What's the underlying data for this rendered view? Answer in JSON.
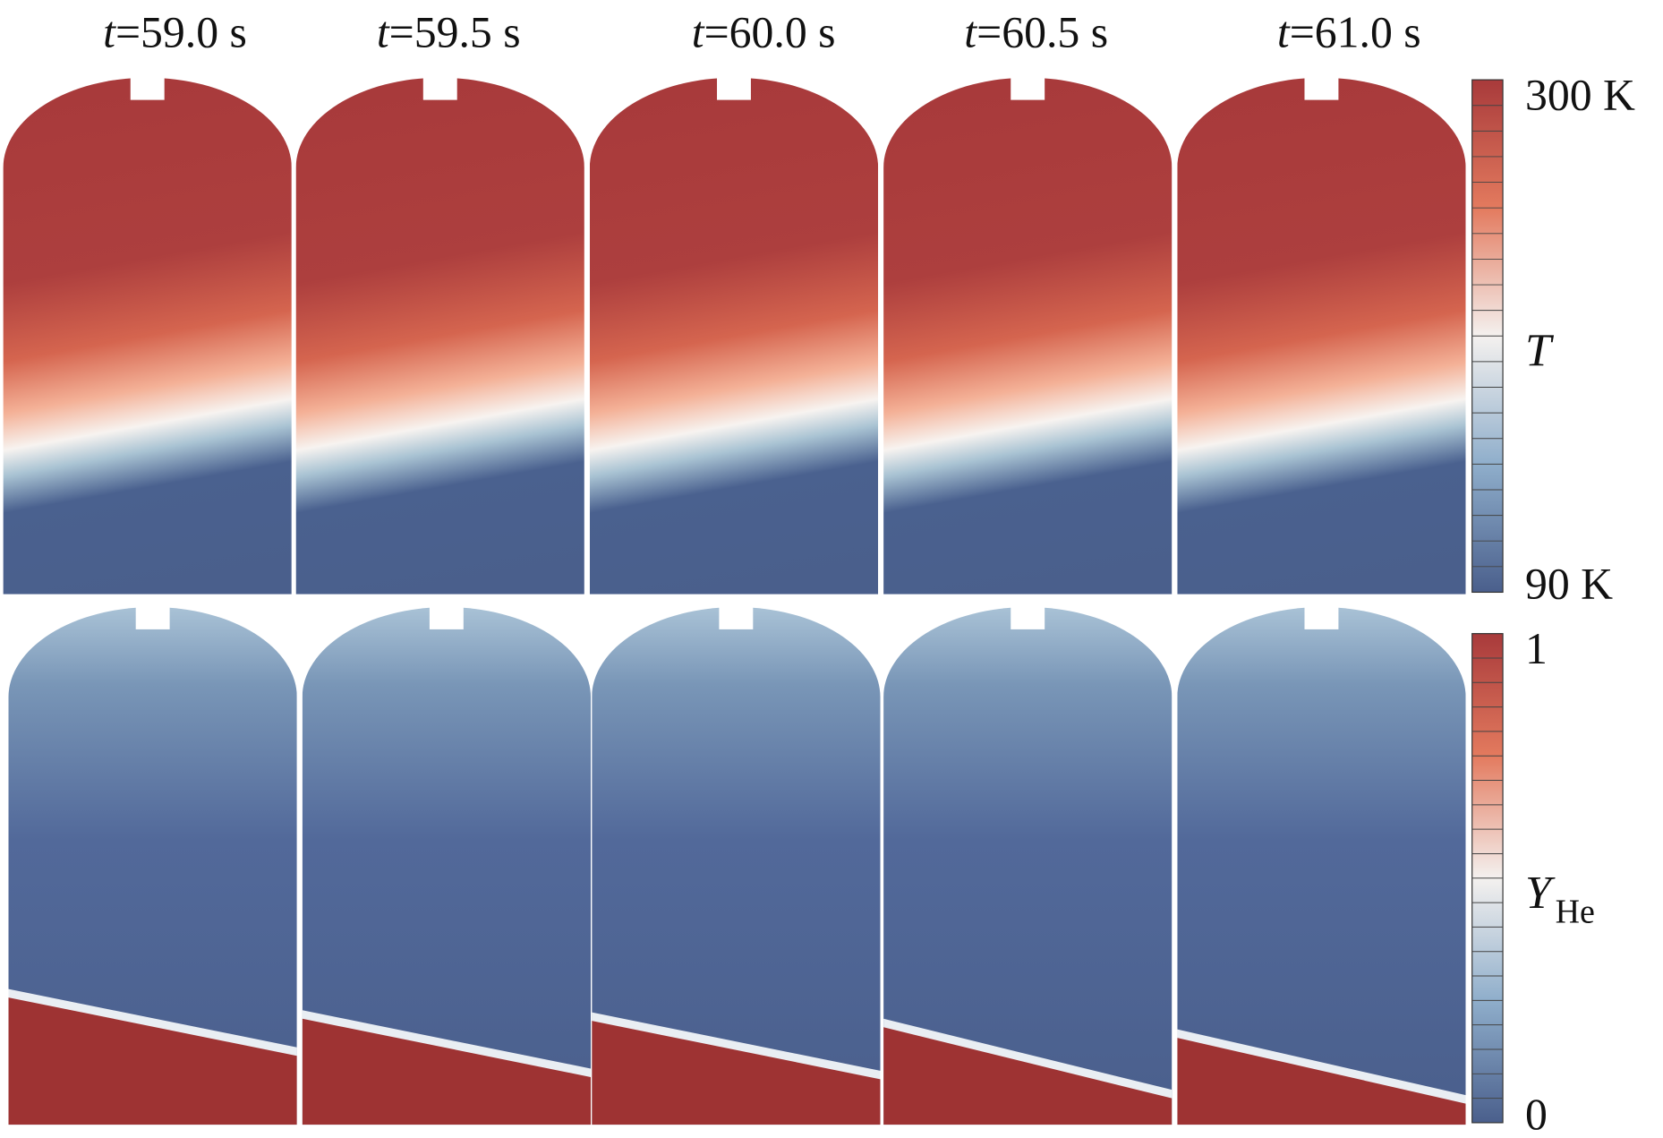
{
  "times": [
    {
      "symbol": "t",
      "text": "=59.0 s"
    },
    {
      "symbol": "t",
      "text": "=59.5 s"
    },
    {
      "symbol": "t",
      "text": "=60.0 s"
    },
    {
      "symbol": "t",
      "text": "=60.5 s"
    },
    {
      "symbol": "t",
      "text": "=61.0 s"
    }
  ],
  "colorbars": [
    {
      "max_label": "300 K",
      "symbol": "T",
      "min_label": "90 K"
    },
    {
      "max_label": "1",
      "symbol": "Y",
      "subscript": "He",
      "min_label": "0"
    }
  ]
}
